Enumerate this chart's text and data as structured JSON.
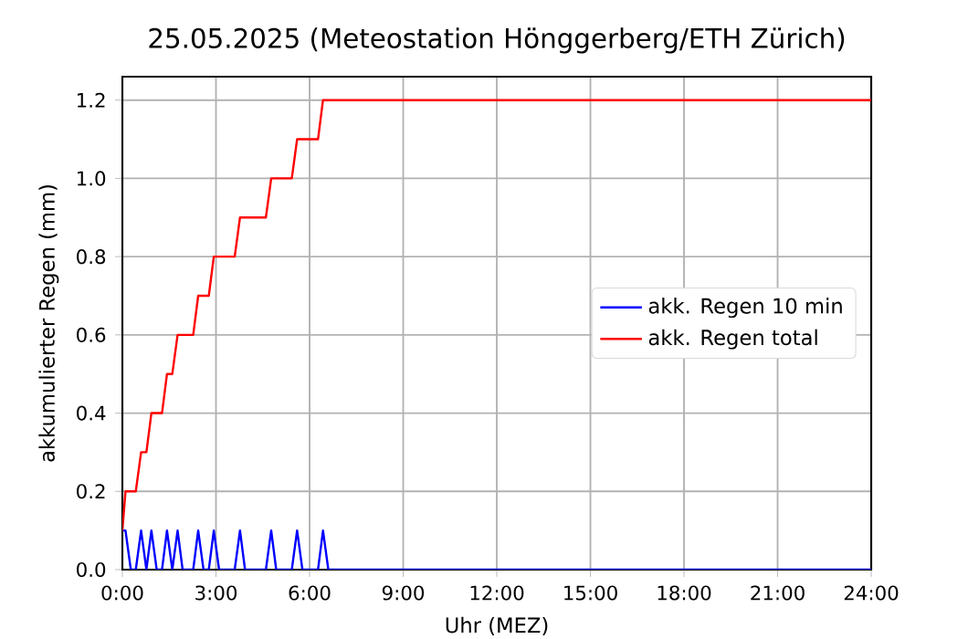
{
  "chart_data": {
    "type": "line",
    "title": "25.05.2025  (Meteostation Hönggerberg/ETH Zürich)",
    "xlabel": "Uhr (MEZ)",
    "ylabel": "akkumulierter Regen (mm)",
    "x": [
      0,
      0.1,
      0.27,
      0.43,
      0.6,
      0.77,
      0.93,
      1.1,
      1.27,
      1.43,
      1.6,
      1.77,
      1.93,
      2.1,
      2.27,
      2.43,
      2.6,
      2.77,
      2.93,
      3.1,
      3.27,
      3.43,
      3.6,
      3.77,
      3.93,
      4.1,
      4.27,
      4.43,
      4.6,
      4.77,
      4.93,
      5.1,
      5.27,
      5.43,
      5.6,
      5.77,
      5.93,
      6.1,
      6.27,
      6.43,
      6.6,
      24
    ],
    "series": [
      {
        "name": "akk. Regen 10 min",
        "color": "#0000ff",
        "values": [
          0.1,
          0.1,
          0,
          0,
          0.1,
          0,
          0.1,
          0,
          0,
          0.1,
          0,
          0.1,
          0,
          0,
          0,
          0.1,
          0,
          0,
          0.1,
          0,
          0,
          0,
          0,
          0.1,
          0,
          0,
          0,
          0,
          0,
          0.1,
          0,
          0,
          0,
          0,
          0.1,
          0,
          0,
          0,
          0,
          0.1,
          0,
          0
        ]
      },
      {
        "name": "akk. Regen total",
        "color": "#ff0000",
        "values": [
          0.1,
          0.2,
          0.2,
          0.2,
          0.3,
          0.3,
          0.4,
          0.4,
          0.4,
          0.5,
          0.5,
          0.6,
          0.6,
          0.6,
          0.6,
          0.7,
          0.7,
          0.7,
          0.8,
          0.8,
          0.8,
          0.8,
          0.8,
          0.9,
          0.9,
          0.9,
          0.9,
          0.9,
          0.9,
          1.0,
          1.0,
          1.0,
          1.0,
          1.0,
          1.1,
          1.1,
          1.1,
          1.1,
          1.1,
          1.2,
          1.2,
          1.2
        ]
      }
    ],
    "xlim": [
      0,
      24
    ],
    "xticks": [
      {
        "value": 0,
        "label": "0:00"
      },
      {
        "value": 3,
        "label": "3:00"
      },
      {
        "value": 6,
        "label": "6:00"
      },
      {
        "value": 9,
        "label": "9:00"
      },
      {
        "value": 12,
        "label": "12:00"
      },
      {
        "value": 15,
        "label": "15:00"
      },
      {
        "value": 18,
        "label": "18:00"
      },
      {
        "value": 21,
        "label": "21:00"
      },
      {
        "value": 24,
        "label": "24:00"
      }
    ],
    "ylim": [
      0,
      1.26
    ],
    "yticks": [
      {
        "value": 0,
        "label": "0.0"
      },
      {
        "value": 0.2,
        "label": "0.2"
      },
      {
        "value": 0.4,
        "label": "0.4"
      },
      {
        "value": 0.6,
        "label": "0.6"
      },
      {
        "value": 0.8,
        "label": "0.8"
      },
      {
        "value": 1.0,
        "label": "1.0"
      },
      {
        "value": 1.2,
        "label": "1.2"
      }
    ],
    "grid": true,
    "legend": "right",
    "marker": "none",
    "line_style": "solid"
  }
}
